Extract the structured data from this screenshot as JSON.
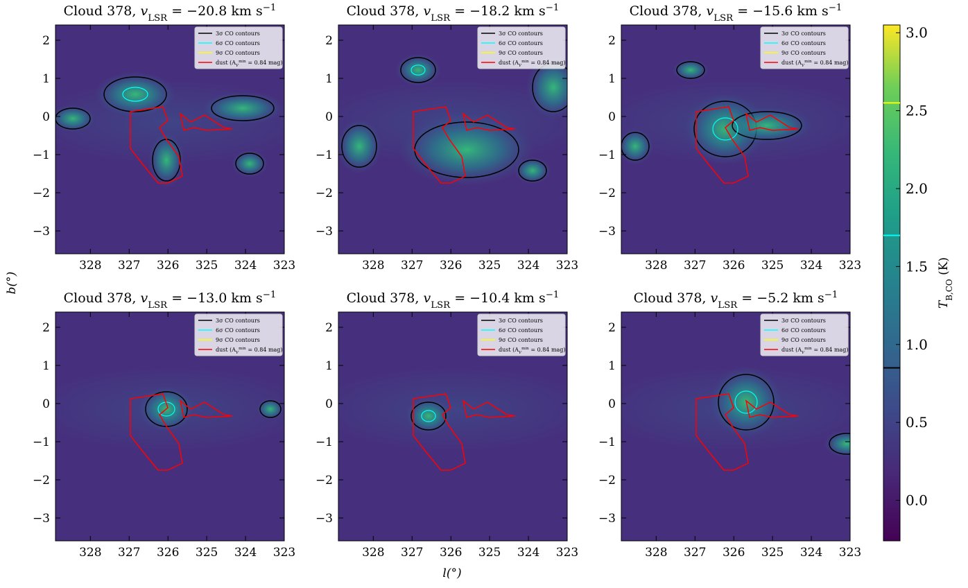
{
  "chart_data": [
    {
      "type": "heatmap",
      "title": [
        "Cloud 378, ",
        "v",
        "LSR",
        " = −20.8 km s",
        "−1"
      ],
      "xlim": [
        328.9,
        323.0
      ],
      "ylim": [
        -3.6,
        2.4
      ],
      "xticks": [
        328,
        327,
        326,
        325,
        324,
        323
      ],
      "yticks": [
        2,
        1,
        0,
        {
          "value": -1,
          "label": "−1"
        },
        {
          "value": -2,
          "label": "−2"
        },
        {
          "value": -3,
          "label": "−3"
        }
      ],
      "series": [
        {
          "name": [
            "3σ CO contours"
          ],
          "color": "#000000"
        },
        {
          "name": [
            "6σ CO contours"
          ],
          "color": "#00ffff"
        },
        {
          "name": [
            "9σ CO contours"
          ],
          "color": "#ffff00"
        },
        {
          "name": [
            "dust (A",
            "V",
            "min",
            " = 0.84 mag)"
          ],
          "color": "#ff0000"
        }
      ]
    },
    {
      "type": "heatmap",
      "title": [
        "Cloud 378, ",
        "v",
        "LSR",
        " = −18.2 km s",
        "−1"
      ],
      "xlim": [
        328.9,
        323.0
      ],
      "ylim": [
        -3.6,
        2.4
      ],
      "xticks": [
        328,
        327,
        326,
        325,
        324,
        323
      ],
      "yticks": [
        2,
        1,
        0,
        {
          "value": -1,
          "label": "−1"
        },
        {
          "value": -2,
          "label": "−2"
        },
        {
          "value": -3,
          "label": "−3"
        }
      ],
      "series": [
        {
          "name": [
            "3σ CO contours"
          ],
          "color": "#000000"
        },
        {
          "name": [
            "6σ CO contours"
          ],
          "color": "#00ffff"
        },
        {
          "name": [
            "9σ CO contours"
          ],
          "color": "#ffff00"
        },
        {
          "name": [
            "dust (A",
            "V",
            "min",
            " = 0.84 mag)"
          ],
          "color": "#ff0000"
        }
      ]
    },
    {
      "type": "heatmap",
      "title": [
        "Cloud 378, ",
        "v",
        "LSR",
        " = −15.6 km s",
        "−1"
      ],
      "xlim": [
        328.9,
        323.0
      ],
      "ylim": [
        -3.6,
        2.4
      ],
      "xticks": [
        328,
        327,
        326,
        325,
        324,
        323
      ],
      "yticks": [
        2,
        1,
        0,
        {
          "value": -1,
          "label": "−1"
        },
        {
          "value": -2,
          "label": "−2"
        },
        {
          "value": -3,
          "label": "−3"
        }
      ],
      "series": [
        {
          "name": [
            "3σ CO contours"
          ],
          "color": "#000000"
        },
        {
          "name": [
            "6σ CO contours"
          ],
          "color": "#00ffff"
        },
        {
          "name": [
            "9σ CO contours"
          ],
          "color": "#ffff00"
        },
        {
          "name": [
            "dust (A",
            "V",
            "min",
            " = 0.84 mag)"
          ],
          "color": "#ff0000"
        }
      ]
    },
    {
      "type": "heatmap",
      "title": [
        "Cloud 378, ",
        "v",
        "LSR",
        " = −13.0 km s",
        "−1"
      ],
      "xlim": [
        328.9,
        323.0
      ],
      "ylim": [
        -3.6,
        2.4
      ],
      "xticks": [
        328,
        327,
        326,
        325,
        324,
        323
      ],
      "yticks": [
        2,
        1,
        0,
        {
          "value": -1,
          "label": "−1"
        },
        {
          "value": -2,
          "label": "−2"
        },
        {
          "value": -3,
          "label": "−3"
        }
      ],
      "series": [
        {
          "name": [
            "3σ CO contours"
          ],
          "color": "#000000"
        },
        {
          "name": [
            "6σ CO contours"
          ],
          "color": "#00ffff"
        },
        {
          "name": [
            "9σ CO contours"
          ],
          "color": "#ffff00"
        },
        {
          "name": [
            "dust (A",
            "V",
            "min",
            " = 0.84 mag)"
          ],
          "color": "#ff0000"
        }
      ]
    },
    {
      "type": "heatmap",
      "title": [
        "Cloud 378, ",
        "v",
        "LSR",
        " = −10.4 km s",
        "−1"
      ],
      "xlim": [
        328.9,
        323.0
      ],
      "ylim": [
        -3.6,
        2.4
      ],
      "xticks": [
        328,
        327,
        326,
        325,
        324,
        323
      ],
      "yticks": [
        2,
        1,
        0,
        {
          "value": -1,
          "label": "−1"
        },
        {
          "value": -2,
          "label": "−2"
        },
        {
          "value": -3,
          "label": "−3"
        }
      ],
      "series": [
        {
          "name": [
            "3σ CO contours"
          ],
          "color": "#000000"
        },
        {
          "name": [
            "6σ CO contours"
          ],
          "color": "#00ffff"
        },
        {
          "name": [
            "9σ CO contours"
          ],
          "color": "#ffff00"
        },
        {
          "name": [
            "dust (A",
            "V",
            "min",
            " = 0.84 mag)"
          ],
          "color": "#ff0000"
        }
      ]
    },
    {
      "type": "heatmap",
      "title": [
        "Cloud 378, ",
        "v",
        "LSR",
        " = −5.2 km s",
        "−1"
      ],
      "xlim": [
        328.9,
        323.0
      ],
      "ylim": [
        -3.6,
        2.4
      ],
      "xticks": [
        328,
        327,
        326,
        325,
        324,
        323
      ],
      "yticks": [
        2,
        1,
        0,
        {
          "value": -1,
          "label": "−1"
        },
        {
          "value": -2,
          "label": "−2"
        },
        {
          "value": -3,
          "label": "−3"
        }
      ],
      "series": [
        {
          "name": [
            "3σ CO contours"
          ],
          "color": "#000000"
        },
        {
          "name": [
            "6σ CO contours"
          ],
          "color": "#00ffff"
        },
        {
          "name": [
            "9σ CO contours"
          ],
          "color": "#ffff00"
        },
        {
          "name": [
            "dust (A",
            "V",
            "min",
            " = 0.84 mag)"
          ],
          "color": "#ff0000"
        }
      ]
    }
  ],
  "figure": {
    "xlabel": "l(°)",
    "ylabel": "b(°)"
  },
  "colorbar": {
    "label": [
      "T",
      "B,CO",
      " (K)"
    ],
    "lim": [
      -0.26,
      3.05
    ],
    "ticks": [
      {
        "value": 0,
        "label": "0.0"
      },
      {
        "value": 0.5,
        "label": "0.5"
      },
      {
        "value": 1,
        "label": "1.0"
      },
      {
        "value": 1.5,
        "label": "1.5"
      },
      {
        "value": 2,
        "label": "2.0"
      },
      {
        "value": 2.5,
        "label": "2.5"
      },
      {
        "value": 3,
        "label": "3.0"
      }
    ],
    "levels": [
      {
        "value": 0.85,
        "color": "#000000"
      },
      {
        "value": 1.7,
        "color": "#00ffff"
      },
      {
        "value": 2.55,
        "color": "#ffff00"
      }
    ]
  }
}
